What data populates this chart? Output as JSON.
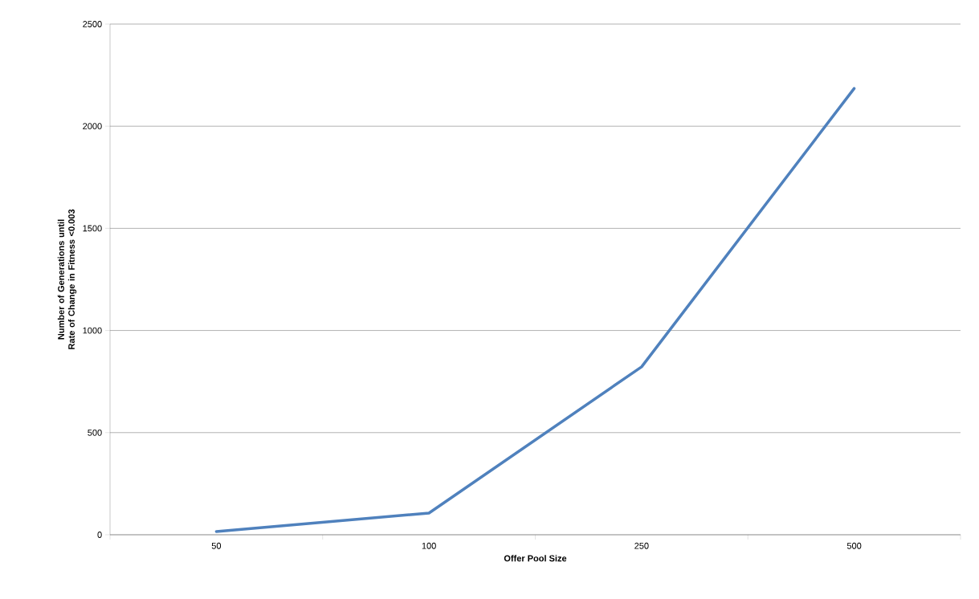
{
  "chart_data": {
    "type": "line",
    "xlabel": "Offer Pool Size",
    "ylabel": "Number of Generations until Rate of Change in Fitness <0.003",
    "categories": [
      "50",
      "100",
      "250",
      "500"
    ],
    "series": [
      {
        "color": "#4f81bd",
        "values": [
          16,
          106,
          822,
          2185
        ]
      }
    ],
    "ylim": [
      0,
      2500
    ],
    "yticks": [
      0,
      500,
      1000,
      1500,
      2000,
      2500
    ],
    "grid": "y",
    "marker": "none",
    "line_style": "solid"
  }
}
